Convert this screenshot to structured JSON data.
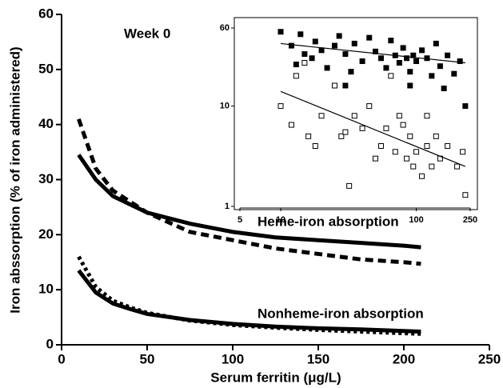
{
  "chart_data": [
    {
      "type": "line",
      "x_label": "Serum ferritin (μg/L)",
      "y_label": "Iron abssorption (% of iron administered)",
      "annotations": [
        "Week 0",
        "Heme-iron absorption",
        "Nonheme-iron absorption"
      ],
      "xlim": [
        0,
        250
      ],
      "xticks": [
        0,
        50,
        100,
        150,
        200,
        250
      ],
      "ylim": [
        0,
        60
      ],
      "yticks": [
        0,
        10,
        20,
        30,
        40,
        50,
        60
      ],
      "x": [
        10,
        20,
        30,
        40,
        50,
        75,
        100,
        125,
        150,
        175,
        200,
        210
      ],
      "series": [
        {
          "color": "#000000",
          "dash": "solid",
          "values": [
            34.5,
            30,
            27,
            25.5,
            24,
            22,
            20.5,
            19.5,
            19,
            18.5,
            18,
            17.7
          ]
        },
        {
          "color": "#000000",
          "dash": "dashed",
          "values": [
            41,
            32,
            28,
            26,
            24,
            20.5,
            19,
            17.5,
            16.5,
            15.5,
            15,
            14.7
          ]
        },
        {
          "color": "#000000",
          "dash": "solid",
          "values": [
            13.5,
            9.5,
            7.5,
            6.5,
            5.6,
            4.5,
            3.8,
            3.3,
            3,
            2.8,
            2.5,
            2.4
          ]
        },
        {
          "color": "#000000",
          "dash": "dotted",
          "values": [
            16,
            10.5,
            8,
            6.8,
            5.8,
            4.4,
            3.6,
            3.1,
            2.7,
            2.4,
            2.1,
            2
          ]
        }
      ]
    },
    {
      "type": "scatter",
      "log_x": true,
      "log_y": true,
      "xlim": [
        5,
        250
      ],
      "xticks": [
        5,
        10,
        100,
        250
      ],
      "ylim": [
        1,
        60
      ],
      "yticks": [
        1,
        10,
        60
      ],
      "series": [
        {
          "color": "#000000",
          "marker": "filled",
          "x": [
            10,
            12,
            13,
            14,
            15,
            17,
            18,
            20,
            22,
            25,
            27,
            30,
            33,
            35,
            40,
            45,
            50,
            55,
            60,
            65,
            70,
            75,
            80,
            85,
            90,
            95,
            100,
            110,
            120,
            130,
            140,
            150,
            170,
            190,
            210,
            230,
            160,
            30,
            90
          ],
          "values": [
            55,
            40,
            26,
            52,
            33,
            30,
            44,
            36,
            24,
            40,
            50,
            33,
            22,
            42,
            28,
            48,
            35,
            30,
            24,
            45,
            32,
            27,
            38,
            30,
            22,
            32,
            28,
            36,
            30,
            20,
            42,
            25,
            32,
            21,
            28,
            10,
            15,
            16,
            16
          ]
        },
        {
          "color": "#000000",
          "marker": "open",
          "x": [
            10,
            12,
            13,
            15,
            16,
            18,
            20,
            25,
            28,
            30,
            32,
            35,
            40,
            45,
            50,
            55,
            60,
            65,
            70,
            75,
            80,
            85,
            90,
            95,
            100,
            110,
            120,
            130,
            140,
            150,
            170,
            200,
            220,
            230,
            120
          ],
          "values": [
            10,
            6.5,
            20,
            27,
            5,
            4,
            8,
            16,
            5,
            5.5,
            1.6,
            8,
            6,
            10,
            3,
            4,
            6,
            20,
            3.5,
            8,
            6.5,
            3,
            5,
            2.5,
            3.5,
            2,
            4,
            2.5,
            5,
            3,
            4,
            2.5,
            3.5,
            1.3,
            8
          ]
        },
        {
          "color": "#000000",
          "marker": "line",
          "x": [
            10,
            230
          ],
          "values": [
            42,
            27
          ]
        },
        {
          "color": "#000000",
          "marker": "line",
          "x": [
            10,
            230
          ],
          "values": [
            14,
            2.5
          ]
        }
      ]
    }
  ]
}
